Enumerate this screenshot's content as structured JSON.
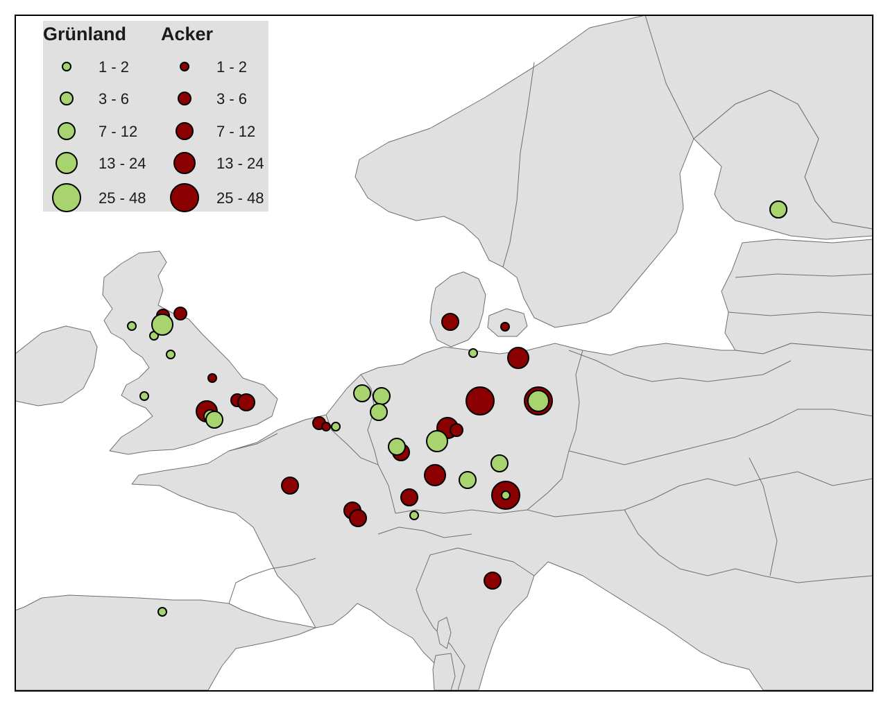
{
  "legend": {
    "groups": [
      {
        "title": "Grünland",
        "color": "#a8d46f",
        "classes": [
          "1 - 2",
          "3 - 6",
          "7 - 12",
          "13 - 24",
          "25 - 48"
        ]
      },
      {
        "title": "Acker",
        "color": "#8b0000",
        "classes": [
          "1 - 2",
          "3 - 6",
          "7 - 12",
          "13 - 24",
          "25 - 48"
        ]
      }
    ]
  },
  "style": {
    "background": "#ffffff",
    "land": "#e0e0e0",
    "border": "#6e6e6e",
    "legend_bg": "#e0e0e0",
    "symbol_outline": "#000000"
  }
}
